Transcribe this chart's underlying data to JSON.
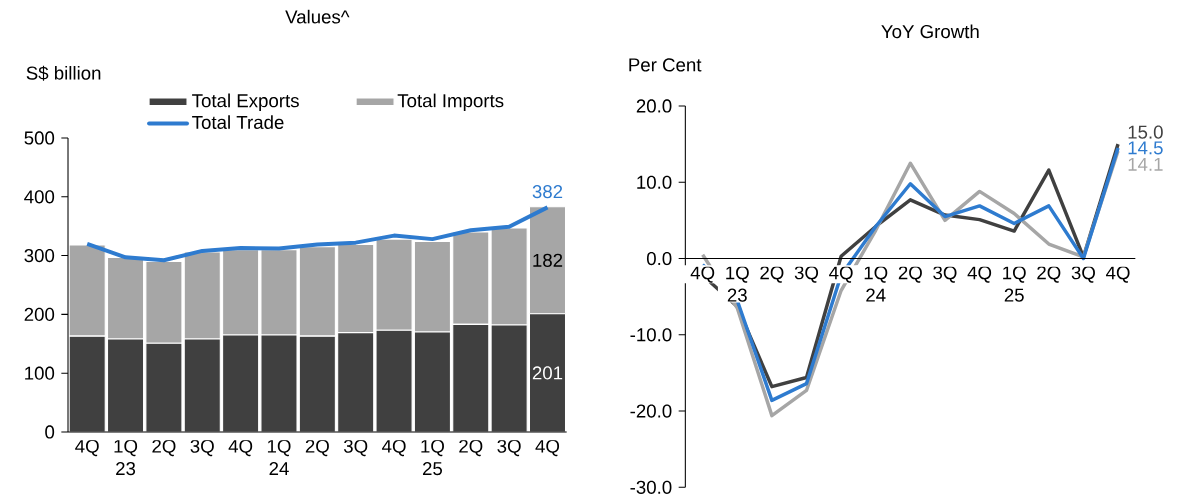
{
  "chart_data": [
    {
      "type": "bar",
      "title": "Values^",
      "ylabel": "S$ billion",
      "stacked": true,
      "legend": "top",
      "categories": [
        "4Q",
        "1Q 23",
        "2Q",
        "3Q",
        "4Q",
        "1Q 24",
        "2Q",
        "3Q",
        "4Q",
        "1Q 25",
        "2Q",
        "3Q",
        "4Q"
      ],
      "series": [
        {
          "name": "Total Exports",
          "color": "#404040",
          "values": [
            163,
            158,
            151,
            158,
            165,
            165,
            163,
            169,
            173,
            170,
            183,
            182,
            201
          ],
          "value_labels": [
            null,
            null,
            null,
            null,
            null,
            null,
            null,
            null,
            null,
            null,
            null,
            null,
            "201"
          ]
        },
        {
          "name": "Total Imports",
          "color": "#a6a6a6",
          "values": [
            155,
            139,
            139,
            148,
            145,
            145,
            152,
            150,
            155,
            154,
            157,
            165,
            182
          ],
          "value_labels": [
            null,
            null,
            null,
            null,
            null,
            null,
            null,
            null,
            null,
            null,
            null,
            null,
            "182"
          ]
        },
        {
          "name": "Total Trade",
          "type": "line",
          "color": "#2e7bcf",
          "values": [
            320,
            297,
            292,
            308,
            313,
            312,
            319,
            322,
            334,
            328,
            343,
            349,
            382
          ],
          "value_labels": [
            null,
            null,
            null,
            null,
            null,
            null,
            null,
            null,
            null,
            null,
            null,
            null,
            "382"
          ]
        }
      ],
      "ylim": [
        0,
        500
      ],
      "yticks": [
        0,
        100,
        200,
        300,
        400,
        500
      ]
    },
    {
      "type": "line",
      "title": "YoY Growth",
      "ylabel": "Per Cent",
      "categories": [
        "4Q",
        "1Q 23",
        "2Q",
        "3Q",
        "4Q",
        "1Q 24",
        "2Q",
        "3Q",
        "4Q",
        "1Q 25",
        "2Q",
        "3Q",
        "4Q"
      ],
      "series": [
        {
          "color": "#404040",
          "values": [
            -2.2,
            -6.3,
            -16.8,
            -15.6,
            0.3,
            4.2,
            7.7,
            5.7,
            5.1,
            3.6,
            11.6,
            0.2,
            15.0
          ],
          "value_labels": [
            null,
            null,
            null,
            null,
            null,
            null,
            null,
            null,
            null,
            null,
            null,
            null,
            "15.0"
          ]
        },
        {
          "color": "#a6a6a6",
          "values": [
            0.5,
            -6.5,
            -20.6,
            -17.3,
            -4.2,
            3.7,
            12.5,
            5.0,
            8.8,
            5.9,
            1.9,
            0.2,
            14.1
          ],
          "value_labels": [
            null,
            null,
            null,
            null,
            null,
            null,
            null,
            null,
            null,
            null,
            null,
            null,
            "14.1"
          ]
        },
        {
          "color": "#2e7bcf",
          "values": [
            -0.8,
            -5.5,
            -18.6,
            -16.4,
            -2.2,
            4.2,
            9.8,
            5.5,
            6.9,
            4.6,
            6.9,
            0.0,
            14.5
          ],
          "value_labels": [
            null,
            null,
            null,
            null,
            null,
            null,
            null,
            null,
            null,
            null,
            null,
            null,
            "14.5"
          ]
        }
      ],
      "ylim": [
        -30,
        20
      ],
      "yticks": [
        {
          "value": -30,
          "label": "-30.0"
        },
        {
          "value": -20,
          "label": "-20.0"
        },
        {
          "value": -10,
          "label": "-10.0"
        },
        {
          "value": 0,
          "label": "0.0"
        },
        {
          "value": 10,
          "label": "10.0"
        },
        {
          "value": 20,
          "label": "20.0"
        }
      ]
    }
  ]
}
